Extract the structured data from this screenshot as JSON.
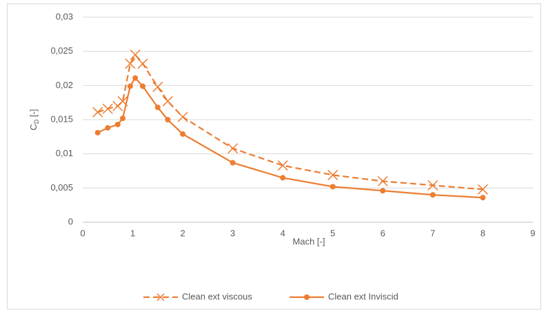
{
  "chart_data": {
    "type": "line",
    "x_label": "Mach [-]",
    "y_label": {
      "main": "C",
      "sub": "D",
      "unit": " [-]"
    },
    "x": [
      0.3,
      0.5,
      0.7,
      0.8,
      0.95,
      1.05,
      1.2,
      1.5,
      1.7,
      2,
      3,
      4,
      5,
      6,
      7,
      8
    ],
    "series": [
      {
        "name": "Clean ext viscous",
        "color": "#ed7d31",
        "dashed": true,
        "marker": "x",
        "values": [
          0.0161,
          0.0166,
          0.017,
          0.0177,
          0.0232,
          0.0245,
          0.0232,
          0.0198,
          0.0177,
          0.0154,
          0.0108,
          0.0083,
          0.0069,
          0.006,
          0.0054,
          0.0048
        ]
      },
      {
        "name": "Clean ext Inviscid",
        "color": "#ed7d31",
        "dashed": false,
        "marker": "circle",
        "values": [
          0.0131,
          0.0138,
          0.0143,
          0.0152,
          0.0199,
          0.0211,
          0.0199,
          0.0168,
          0.015,
          0.0129,
          0.0087,
          0.0065,
          0.0052,
          0.0046,
          0.004,
          0.0036
        ]
      }
    ],
    "xlim": [
      0,
      9
    ],
    "xticks": [
      0,
      1,
      2,
      3,
      4,
      5,
      6,
      7,
      8,
      9
    ],
    "ylim": [
      0,
      0.03
    ],
    "yticks": [
      0,
      {
        "value": 0.005,
        "label": "0,005"
      },
      {
        "value": 0.01,
        "label": "0,01"
      },
      {
        "value": 0.015,
        "label": "0,015"
      },
      {
        "value": 0.02,
        "label": "0,02"
      },
      {
        "value": 0.025,
        "label": "0,025"
      },
      {
        "value": 0.03,
        "label": "0,03"
      }
    ],
    "grid": true,
    "legend": "bottom"
  }
}
